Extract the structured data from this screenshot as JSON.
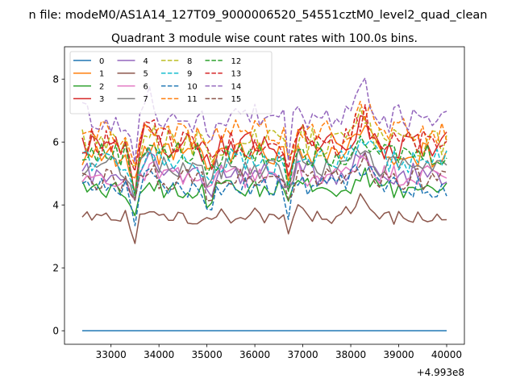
{
  "chart_data": {
    "type": "line",
    "suptitle": "n file: modeM0/AS1A14_127T09_9000006520_54551cztM0_level2_quad_clean",
    "title": "Quadrant 3 module wise count rates with 100.0s bins.",
    "xlabel": "",
    "ylabel": "",
    "offset_label": "+4.993e8",
    "xlim": [
      32030,
      40370
    ],
    "ylim": [
      -0.43,
      9.03
    ],
    "xticks": [
      33000,
      34000,
      35000,
      36000,
      37000,
      38000,
      39000,
      40000
    ],
    "xtick_labels": [
      "33000",
      "34000",
      "35000",
      "36000",
      "37000",
      "38000",
      "39000",
      "40000"
    ],
    "yticks": [
      0,
      2,
      4,
      6,
      8
    ],
    "ytick_labels": [
      "0",
      "2",
      "4",
      "6",
      "8"
    ],
    "x_start": 32400,
    "x_step": 100,
    "n_points": 77,
    "grid": false,
    "legend_location": "upper-left",
    "legend_columns": 4,
    "series": [
      {
        "name": "0",
        "color": "#1f77b4",
        "dashed": false,
        "base": 0,
        "amp": 0,
        "seed": 0
      },
      {
        "name": "1",
        "color": "#ff7f0e",
        "dashed": false,
        "base": 5.6,
        "amp": 0.9,
        "seed": 1
      },
      {
        "name": "2",
        "color": "#2ca02c",
        "dashed": false,
        "base": 4.5,
        "amp": 0.7,
        "seed": 2
      },
      {
        "name": "3",
        "color": "#d62728",
        "dashed": false,
        "base": 5.9,
        "amp": 1.0,
        "seed": 3
      },
      {
        "name": "4",
        "color": "#9467bd",
        "dashed": false,
        "base": 5.0,
        "amp": 0.8,
        "seed": 4
      },
      {
        "name": "5",
        "color": "#8c564b",
        "dashed": false,
        "base": 3.65,
        "amp": 0.6,
        "seed": 5
      },
      {
        "name": "6",
        "color": "#e377c2",
        "dashed": false,
        "base": 4.9,
        "amp": 0.8,
        "seed": 6
      },
      {
        "name": "7",
        "color": "#7f7f7f",
        "dashed": false,
        "base": 5.2,
        "amp": 0.8,
        "seed": 7
      },
      {
        "name": "8",
        "color": "#bcbd22",
        "dashed": true,
        "base": 6.0,
        "amp": 1.0,
        "seed": 8
      },
      {
        "name": "9",
        "color": "#17becf",
        "dashed": true,
        "base": 5.4,
        "amp": 0.9,
        "seed": 9
      },
      {
        "name": "10",
        "color": "#1f77b4",
        "dashed": true,
        "base": 4.6,
        "amp": 0.8,
        "seed": 10
      },
      {
        "name": "11",
        "color": "#ff7f0e",
        "dashed": true,
        "base": 6.3,
        "amp": 1.0,
        "seed": 11
      },
      {
        "name": "12",
        "color": "#2ca02c",
        "dashed": true,
        "base": 5.6,
        "amp": 0.9,
        "seed": 12
      },
      {
        "name": "13",
        "color": "#d62728",
        "dashed": true,
        "base": 6.0,
        "amp": 1.0,
        "seed": 13
      },
      {
        "name": "14",
        "color": "#9467bd",
        "dashed": true,
        "base": 6.8,
        "amp": 1.1,
        "seed": 14
      },
      {
        "name": "15",
        "color": "#8c564b",
        "dashed": true,
        "base": 4.8,
        "amp": 0.8,
        "seed": 15
      }
    ]
  }
}
